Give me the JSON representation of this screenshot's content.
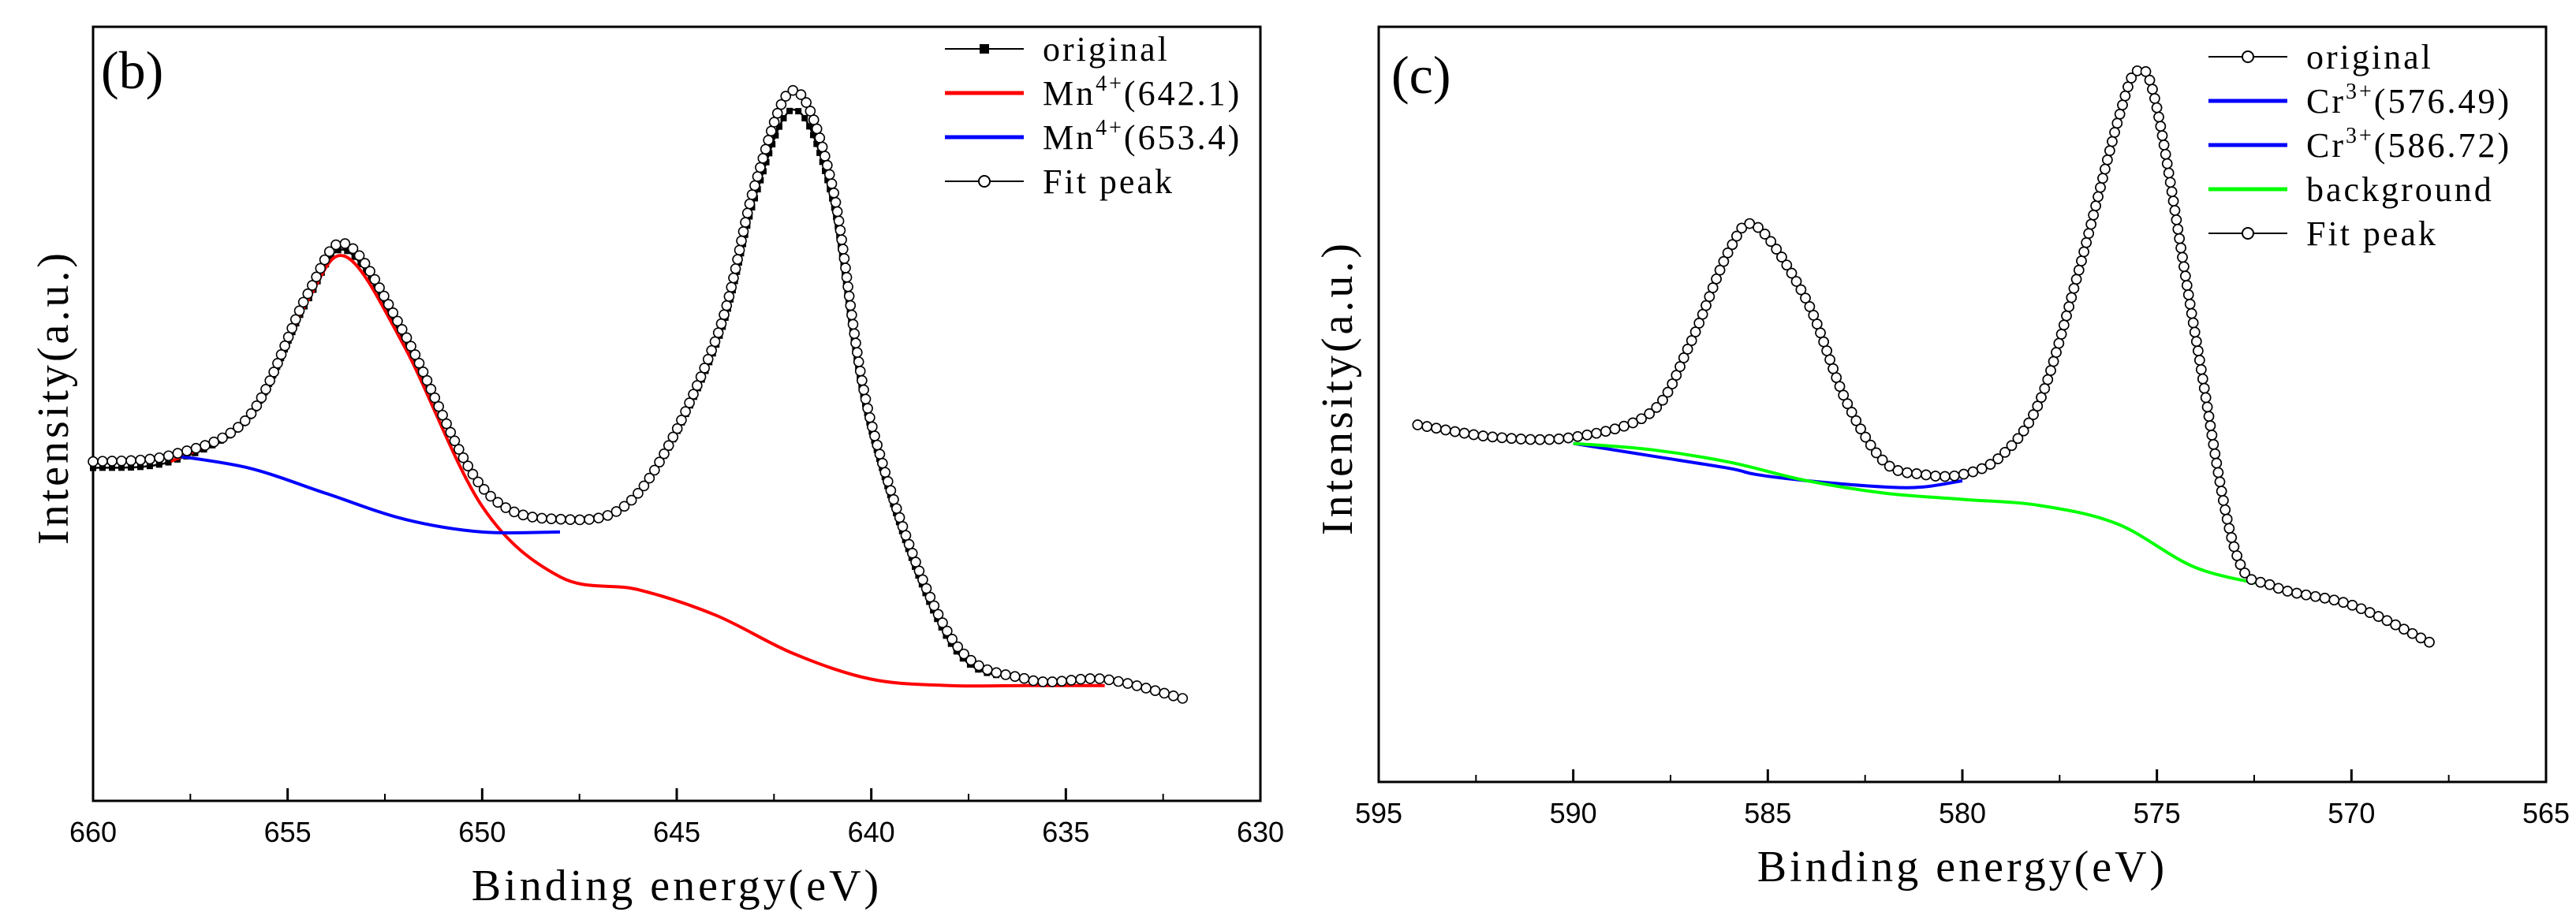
{
  "chart_data": [
    {
      "type": "line",
      "panel": "(b)",
      "xlabel": "Binding energy(eV)",
      "ylabel": "Intensity(a.u.)",
      "xlim": [
        660,
        630
      ],
      "x_reversed": true,
      "xticks": [
        "660",
        "655",
        "650",
        "645",
        "640",
        "635",
        "630"
      ],
      "y_ticks_shown": false,
      "legend_position": "top-right",
      "legend": [
        {
          "label": "original",
          "sup": "",
          "suffix": "",
          "color": "#000000",
          "marker": "filled-square"
        },
        {
          "label": "Mn",
          "sup": "4+",
          "suffix": "(642.1)",
          "color": "#ff0000",
          "marker": "none"
        },
        {
          "label": "Mn",
          "sup": "4+",
          "suffix": "(653.4)",
          "color": "#0000ff",
          "marker": "none"
        },
        {
          "label": "Fit peak",
          "sup": "",
          "suffix": "",
          "color": "#000000",
          "marker": "open-circle"
        }
      ],
      "series": [
        {
          "name": "original",
          "x": [
            660,
            658,
            656,
            654.5,
            653.5,
            652,
            650,
            648,
            646,
            644,
            643,
            642,
            641,
            640,
            638,
            636,
            634,
            632
          ],
          "y": [
            0.36,
            0.37,
            0.44,
            0.62,
            0.7,
            0.56,
            0.33,
            0.28,
            0.32,
            0.55,
            0.78,
            0.92,
            0.78,
            0.42,
            0.09,
            0.03,
            0.03,
            0.0
          ]
        },
        {
          "name": "Mn4+(642.1)",
          "x": [
            658,
            656,
            654.5,
            653.5,
            652,
            650,
            648,
            646,
            644,
            642,
            640,
            638,
            636,
            634
          ],
          "y": [
            0.37,
            0.44,
            0.62,
            0.69,
            0.55,
            0.3,
            0.19,
            0.17,
            0.13,
            0.07,
            0.03,
            0.02,
            0.02,
            0.02
          ]
        },
        {
          "name": "Mn4+(653.4)",
          "x": [
            658,
            656,
            654,
            652,
            650,
            648
          ],
          "y": [
            0.38,
            0.36,
            0.32,
            0.28,
            0.26,
            0.26
          ]
        },
        {
          "name": "Fit peak",
          "x": [
            660,
            658,
            656,
            654.5,
            653.5,
            652,
            650,
            648,
            646,
            644,
            643,
            642,
            641,
            640,
            638,
            636,
            634,
            632
          ],
          "y": [
            0.37,
            0.38,
            0.44,
            0.63,
            0.71,
            0.57,
            0.33,
            0.28,
            0.32,
            0.56,
            0.8,
            0.95,
            0.8,
            0.43,
            0.1,
            0.03,
            0.03,
            0.0
          ]
        }
      ]
    },
    {
      "type": "line",
      "panel": "(c)",
      "xlabel": "Binding energy(eV)",
      "ylabel": "Intensity(a.u.)",
      "xlim": [
        595,
        565
      ],
      "x_reversed": true,
      "xticks": [
        "595",
        "590",
        "585",
        "580",
        "575",
        "570",
        "565"
      ],
      "y_ticks_shown": false,
      "legend_position": "top-right",
      "legend": [
        {
          "label": "original",
          "sup": "",
          "suffix": "",
          "color": "#000000",
          "marker": "open-circle"
        },
        {
          "label": "Cr",
          "sup": "3+",
          "suffix": "(576.49)",
          "color": "#0000ff",
          "marker": "none"
        },
        {
          "label": "Cr",
          "sup": "3+",
          "suffix": "(586.72)",
          "color": "#0000ff",
          "marker": "none"
        },
        {
          "label": "background",
          "sup": "",
          "suffix": "",
          "color": "#00ff00",
          "marker": "none"
        },
        {
          "label": "Fit peak",
          "sup": "",
          "suffix": "",
          "color": "#000000",
          "marker": "open-circle"
        }
      ],
      "series": [
        {
          "name": "original",
          "x": [
            594,
            592,
            590,
            588,
            587,
            586,
            585.3,
            584,
            583,
            582,
            581,
            580,
            579,
            578,
            577,
            576,
            575.5,
            575,
            574,
            573,
            572,
            570,
            568
          ],
          "y": [
            0.41,
            0.39,
            0.39,
            0.43,
            0.54,
            0.69,
            0.73,
            0.61,
            0.45,
            0.35,
            0.33,
            0.33,
            0.36,
            0.45,
            0.66,
            0.9,
            0.98,
            0.92,
            0.55,
            0.21,
            0.15,
            0.12,
            0.06
          ]
        },
        {
          "name": "Cr3+(576.49)",
          "x": [
            578,
            577,
            576,
            575.5,
            575,
            574,
            573,
            572
          ],
          "y": [
            0.45,
            0.66,
            0.9,
            0.98,
            0.92,
            0.55,
            0.21,
            0.15
          ]
        },
        {
          "name": "Cr3+(586.72)",
          "x": [
            590,
            588,
            586,
            585.3,
            584,
            582,
            581,
            580
          ],
          "y": [
            0.38,
            0.36,
            0.34,
            0.33,
            0.32,
            0.31,
            0.31,
            0.32
          ]
        },
        {
          "name": "background",
          "x": [
            590,
            588,
            586,
            584,
            582,
            580,
            578,
            576,
            574,
            572
          ],
          "y": [
            0.38,
            0.37,
            0.35,
            0.32,
            0.3,
            0.29,
            0.28,
            0.25,
            0.18,
            0.15
          ]
        },
        {
          "name": "Fit peak",
          "x": [
            594,
            592,
            590,
            588,
            587,
            586,
            585.3,
            584,
            583,
            582,
            581,
            580,
            579,
            578,
            577,
            576,
            575.5,
            575,
            574,
            573,
            572,
            570,
            568
          ],
          "y": [
            0.41,
            0.39,
            0.39,
            0.43,
            0.54,
            0.69,
            0.73,
            0.61,
            0.45,
            0.35,
            0.33,
            0.33,
            0.36,
            0.45,
            0.66,
            0.9,
            0.98,
            0.92,
            0.55,
            0.21,
            0.15,
            0.12,
            0.06
          ]
        }
      ]
    }
  ]
}
